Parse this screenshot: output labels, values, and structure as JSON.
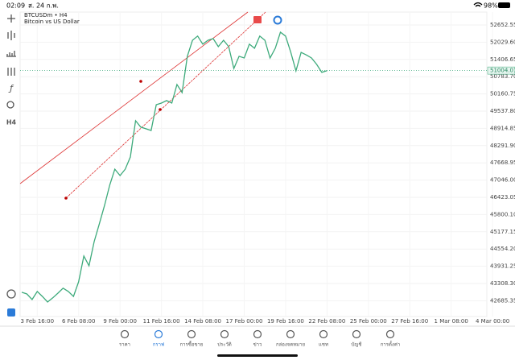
{
  "status_bar": {
    "time": "02:09",
    "date": "ส. 24 ก.พ.",
    "battery": "98%"
  },
  "toolbar": {
    "timeframe": "H4"
  },
  "chart_data": {
    "type": "line",
    "title": "BTCUSDm • H4",
    "subtitle": "Bitcoin vs US Dollar",
    "color": "#3daa7b",
    "current_price": 51004.01,
    "current_color": "#3daa7b",
    "ylim": [
      42115,
      53118
    ],
    "yticks": [
      52652.55,
      {
        "value": 52029.6,
        "label": "52029.60"
      },
      51406.65,
      {
        "value": 50783.7,
        "label": "50783.70"
      },
      50160.75,
      {
        "value": 49537.8,
        "label": "49537.80"
      },
      48914.85,
      {
        "value": 48291.9,
        "label": "48291.90"
      },
      47668.95,
      {
        "value": 47046,
        "label": "47046.00"
      },
      46423.05,
      {
        "value": 45800.1,
        "label": "45800.10"
      },
      45177.15,
      {
        "value": 44554.2,
        "label": "44554.20"
      },
      43931.25,
      {
        "value": 43308.3,
        "label": "43308.30"
      },
      42685.35
    ],
    "grid": true,
    "categories": [
      null,
      null,
      null,
      "3 Feb 16:00",
      null,
      null,
      null,
      null,
      null,
      null,
      null,
      "6 Feb 08:00",
      null,
      null,
      null,
      null,
      null,
      null,
      null,
      "9 Feb 00:00",
      null,
      null,
      null,
      null,
      null,
      null,
      null,
      "11 Feb 16:00",
      null,
      null,
      null,
      null,
      null,
      null,
      null,
      "14 Feb 08:00",
      null,
      null,
      null,
      null,
      null,
      null,
      null,
      "17 Feb 00:00",
      null,
      null,
      null,
      null,
      null,
      null,
      null,
      "19 Feb 16:00",
      null,
      null,
      null,
      null,
      null,
      null,
      null,
      "22 Feb 08:00",
      null,
      null,
      null,
      null,
      null,
      null,
      null,
      "25 Feb 00:00",
      null,
      null,
      null,
      null,
      null,
      null,
      null,
      "27 Feb 16:00",
      null,
      null,
      null,
      null,
      null,
      null,
      null,
      "1 Mar 08:00",
      null,
      null,
      null,
      null,
      null,
      null,
      null,
      "4 Mar 00:00"
    ],
    "values": [
      42990,
      42930,
      42730,
      43020,
      42840,
      42640,
      42790,
      42960,
      43140,
      43020,
      42840,
      43370,
      44300,
      43950,
      44820,
      45460,
      46130,
      46860,
      47440,
      47210,
      47440,
      47880,
      49190,
      48960,
      48900,
      48840,
      49770,
      49830,
      49920,
      49830,
      50500,
      50210,
      51520,
      52100,
      52250,
      51960,
      52100,
      52160,
      51870,
      52100,
      51870,
      51080,
      51520,
      51460,
      51960,
      51810,
      52250,
      52100,
      51460,
      51810,
      52390,
      52250,
      51660,
      50990,
      51660,
      51570,
      51460,
      51230,
      50940,
      51000,
      null,
      null,
      null,
      null,
      null,
      null,
      null,
      null,
      null,
      null,
      null,
      null,
      null,
      null,
      null,
      null,
      null,
      null,
      null,
      null,
      null,
      null,
      null,
      null,
      null,
      null,
      null,
      null,
      null,
      null,
      null,
      null
    ]
  },
  "nav": [
    "ราคา",
    "กราฟ",
    "การซื้อขาย",
    "ประวัติ",
    "ข่าว",
    "กล่องจดหมาย",
    "แชท",
    "บัญชี",
    "การตั้งค่า"
  ]
}
